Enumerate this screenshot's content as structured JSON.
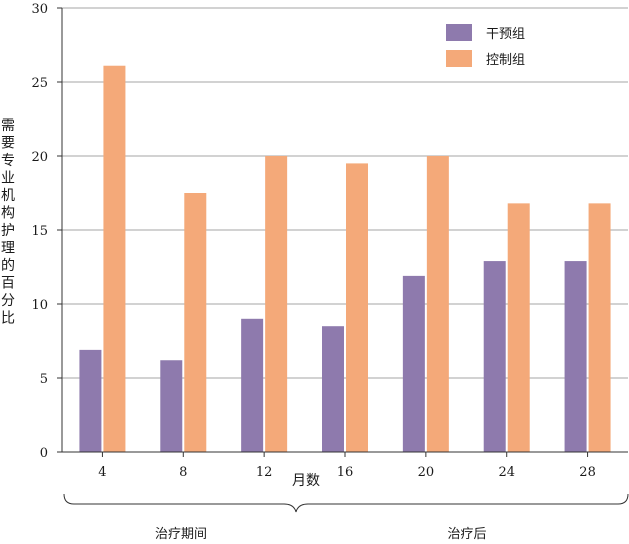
{
  "chart_data": {
    "type": "bar",
    "categories": [
      "4",
      "8",
      "12",
      "16",
      "20",
      "24",
      "28"
    ],
    "series": [
      {
        "name": "干预组",
        "values": [
          6.9,
          6.2,
          9.0,
          8.5,
          11.9,
          12.9,
          12.9
        ]
      },
      {
        "name": "控制组",
        "values": [
          26.1,
          17.5,
          20.0,
          19.5,
          20.0,
          16.8,
          16.8
        ]
      }
    ],
    "xlabel": "月数",
    "ylabel": "需要专业机构护理的百分比",
    "ylim": [
      0,
      30
    ],
    "yticks": [
      "0",
      "5",
      "10",
      "15",
      "20",
      "25",
      "30"
    ],
    "grid": true,
    "legend_position": "top-right",
    "periods": [
      {
        "label": "治疗期间",
        "categories": [
          "4",
          "8",
          "12"
        ]
      },
      {
        "label": "治疗后",
        "categories": [
          "16",
          "20",
          "24",
          "28"
        ]
      }
    ]
  },
  "colors": {
    "intervention": "#8e7aad",
    "control": "#f4a979",
    "grid": "#a6a6a6",
    "axis": "#333333"
  }
}
